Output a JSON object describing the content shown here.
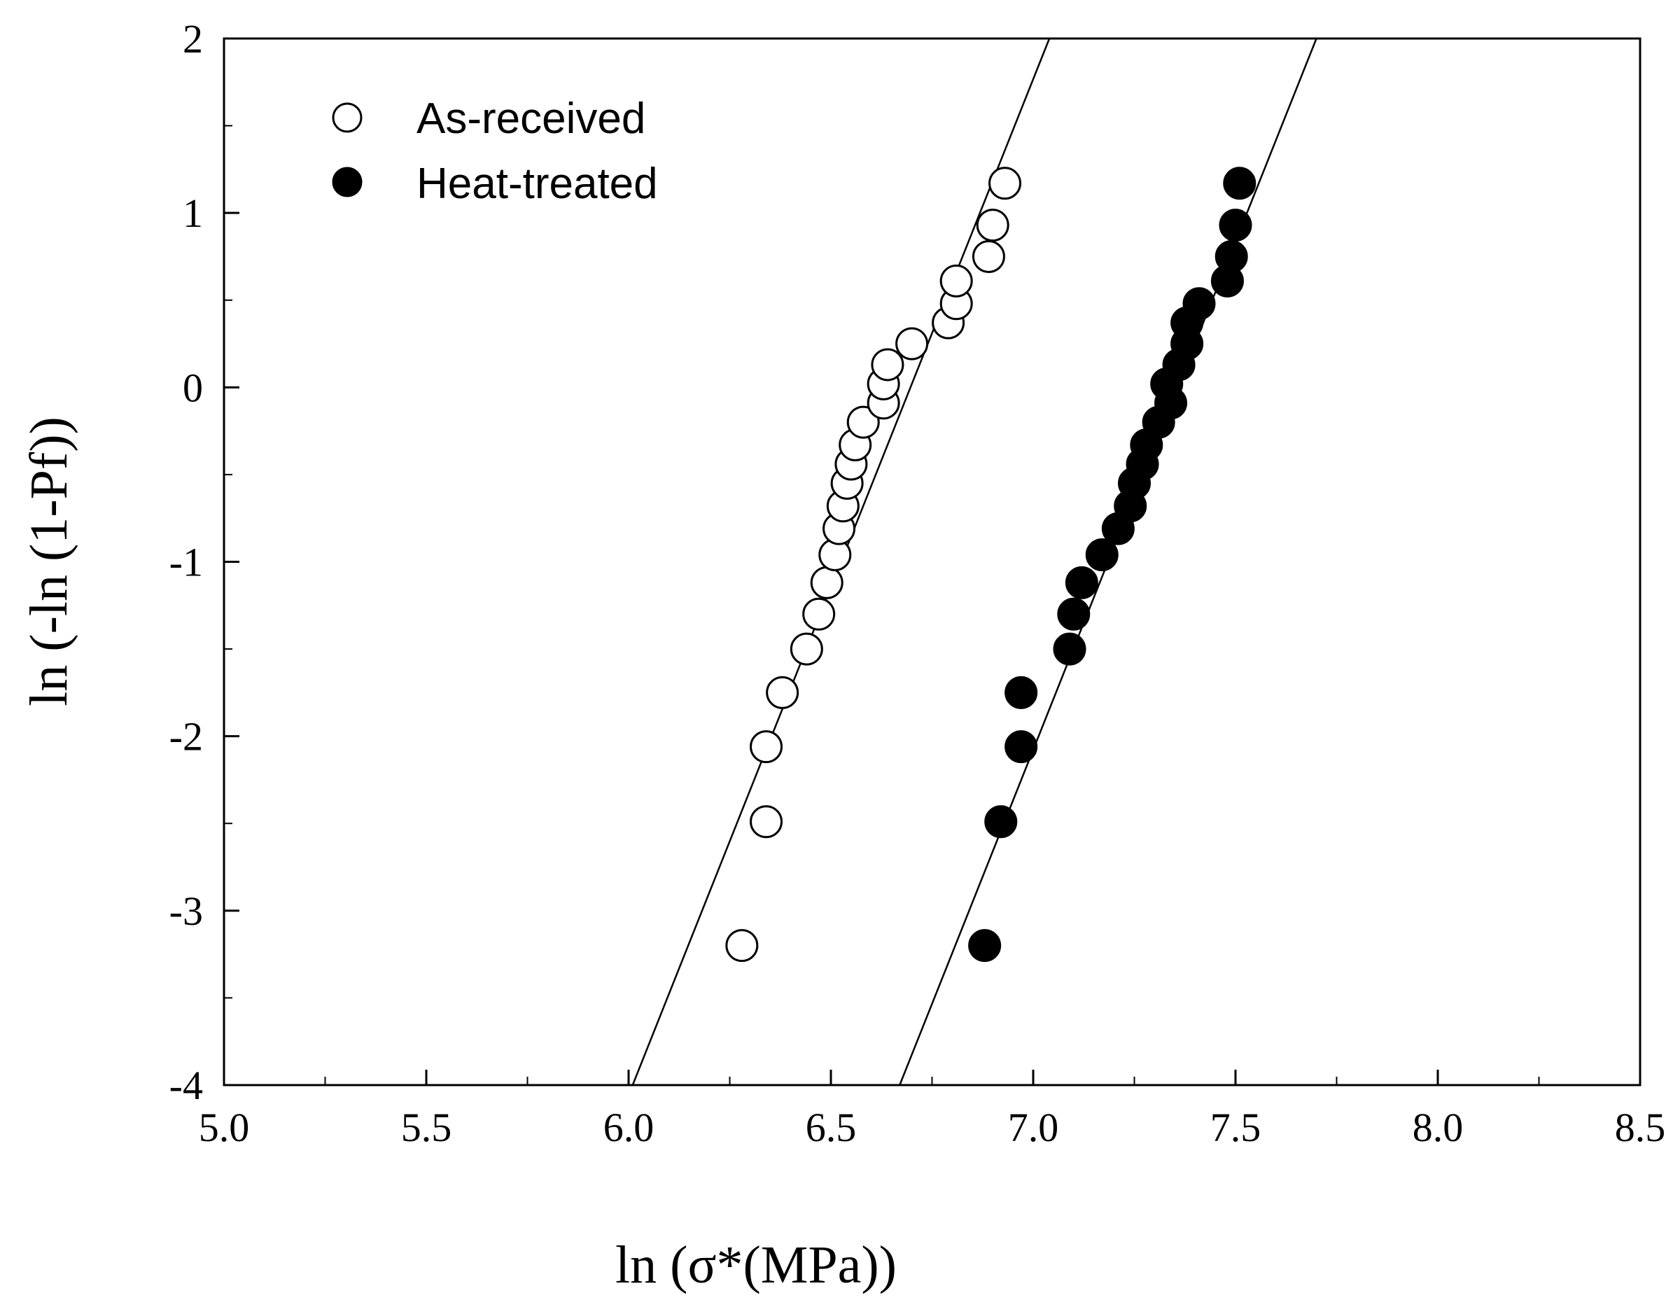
{
  "chart_data": {
    "type": "scatter",
    "title": "",
    "xlabel": "ln (σ*(MPa))",
    "ylabel": "ln (-ln (1-Pf))",
    "xlim": [
      5.0,
      8.5
    ],
    "ylim": [
      -4,
      2
    ],
    "x_ticks": [
      "5.0",
      "5.5",
      "6.0",
      "6.5",
      "7.0",
      "7.5",
      "8.0",
      "8.5"
    ],
    "y_ticks": [
      "-4",
      "-3",
      "-2",
      "-1",
      "0",
      "1",
      "2"
    ],
    "grid": false,
    "legend_position": "top-left",
    "series": [
      {
        "name": "As-received",
        "marker": "open-circle",
        "color": "#000000",
        "fill": "#ffffff",
        "points": [
          [
            6.28,
            -3.2
          ],
          [
            6.34,
            -2.49
          ],
          [
            6.34,
            -2.06
          ],
          [
            6.38,
            -1.75
          ],
          [
            6.44,
            -1.5
          ],
          [
            6.47,
            -1.3
          ],
          [
            6.49,
            -1.12
          ],
          [
            6.51,
            -0.96
          ],
          [
            6.52,
            -0.81
          ],
          [
            6.53,
            -0.68
          ],
          [
            6.54,
            -0.55
          ],
          [
            6.55,
            -0.44
          ],
          [
            6.56,
            -0.33
          ],
          [
            6.58,
            -0.2
          ],
          [
            6.63,
            -0.09
          ],
          [
            6.63,
            0.02
          ],
          [
            6.64,
            0.13
          ],
          [
            6.7,
            0.25
          ],
          [
            6.79,
            0.37
          ],
          [
            6.81,
            0.48
          ],
          [
            6.81,
            0.61
          ],
          [
            6.89,
            0.75
          ],
          [
            6.9,
            0.93
          ],
          [
            6.93,
            1.17
          ]
        ],
        "fit_line": [
          [
            6.01,
            -4
          ],
          [
            7.04,
            2
          ]
        ]
      },
      {
        "name": "Heat-treated",
        "marker": "filled-circle",
        "color": "#000000",
        "fill": "#000000",
        "points": [
          [
            6.88,
            -3.2
          ],
          [
            6.92,
            -2.49
          ],
          [
            6.97,
            -2.06
          ],
          [
            6.97,
            -1.75
          ],
          [
            7.09,
            -1.5
          ],
          [
            7.1,
            -1.3
          ],
          [
            7.12,
            -1.12
          ],
          [
            7.17,
            -0.96
          ],
          [
            7.21,
            -0.81
          ],
          [
            7.24,
            -0.68
          ],
          [
            7.25,
            -0.55
          ],
          [
            7.27,
            -0.44
          ],
          [
            7.28,
            -0.33
          ],
          [
            7.31,
            -0.2
          ],
          [
            7.34,
            -0.09
          ],
          [
            7.33,
            0.02
          ],
          [
            7.36,
            0.13
          ],
          [
            7.38,
            0.25
          ],
          [
            7.38,
            0.37
          ],
          [
            7.41,
            0.48
          ],
          [
            7.48,
            0.61
          ],
          [
            7.49,
            0.75
          ],
          [
            7.5,
            0.93
          ],
          [
            7.51,
            1.17
          ]
        ],
        "fit_line": [
          [
            6.67,
            -4
          ],
          [
            7.7,
            2
          ]
        ]
      }
    ]
  }
}
